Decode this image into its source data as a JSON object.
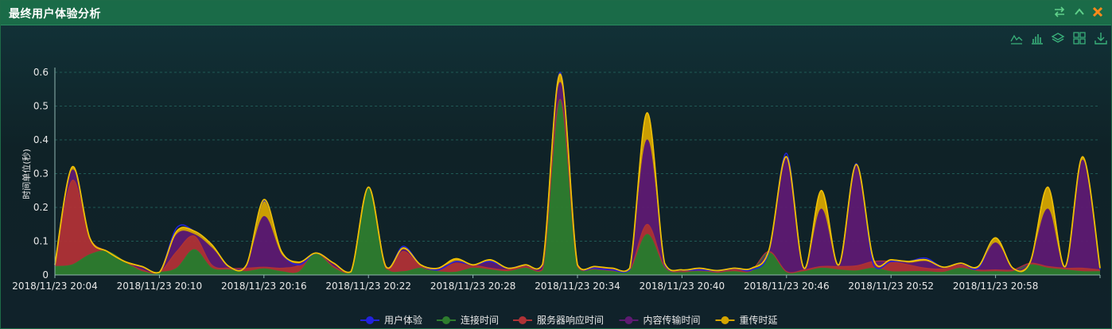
{
  "panel": {
    "title": "最终用户体验分析"
  },
  "window_controls": [
    "swap-icon",
    "chevron-up-icon",
    "close-icon"
  ],
  "toolbox": [
    "line-chart-icon",
    "bar-chart-icon",
    "stack-icon",
    "tiled-icon",
    "download-icon"
  ],
  "colors": {
    "user_experience": "#2222dd",
    "connect_time": "#2e7d2e",
    "server_response": "#b03236",
    "content_transfer": "#5e1a72",
    "retrans_delay": "#d6a500",
    "axis": "#8fb5b0",
    "grid": "#1f5a55"
  },
  "chart_data": {
    "type": "area",
    "title": "",
    "xlabel": "",
    "ylabel": "时间单位(秒)",
    "ylim": [
      0,
      0.6
    ],
    "yticks": [
      0,
      0.1,
      0.2,
      0.3,
      0.4,
      0.5,
      0.6
    ],
    "x_start": "2018/11/23 20:04",
    "xtick_labels": [
      "2018/11/23 20:04",
      "2018/11/23 20:10",
      "2018/11/23 20:16",
      "2018/11/23 20:22",
      "2018/11/23 20:28",
      "2018/11/23 20:34",
      "2018/11/23 20:40",
      "2018/11/23 20:46",
      "2018/11/23 20:52",
      "2018/11/23 20:58"
    ],
    "legend": [
      "用户体验",
      "连接时间",
      "服务器响应时间",
      "内容传输时间",
      "重传时延"
    ],
    "legend_position": "bottom",
    "grid": true,
    "series": [
      {
        "name": "连接时间",
        "key": "connect_time",
        "stack": true,
        "values": [
          0.025,
          0.03,
          0.06,
          0.07,
          0.04,
          0.01,
          0.008,
          0.02,
          0.075,
          0.02,
          0.015,
          0.01,
          0.018,
          0.01,
          0.008,
          0.065,
          0.02,
          0.01,
          0.26,
          0.02,
          0.01,
          0.02,
          0.01,
          0.008,
          0.02,
          0.015,
          0.01,
          0.02,
          0.012,
          0.52,
          0.02,
          0.015,
          0.01,
          0.01,
          0.12,
          0.02,
          0.01,
          0.01,
          0.008,
          0.01,
          0.01,
          0.065,
          0.01,
          0.01,
          0.02,
          0.015,
          0.012,
          0.02,
          0.01,
          0.01,
          0.01,
          0.008,
          0.02,
          0.01,
          0.01,
          0.01,
          0.03,
          0.02,
          0.015,
          0.01,
          0.01
        ]
      },
      {
        "name": "服务器响应时间",
        "key": "server_response",
        "stack": true,
        "values": [
          0.005,
          0.25,
          0.05,
          0.0,
          0.0,
          0.005,
          0.0,
          0.05,
          0.04,
          0.01,
          0.005,
          0.01,
          0.005,
          0.01,
          0.02,
          0.0,
          0.005,
          0.0,
          0.0,
          0.0,
          0.06,
          0.005,
          0.005,
          0.03,
          0.01,
          0.005,
          0.005,
          0.005,
          0.005,
          0.0,
          0.005,
          0.005,
          0.005,
          0.005,
          0.03,
          0.005,
          0.0,
          0.005,
          0.0,
          0.005,
          0.005,
          0.005,
          0.0,
          0.005,
          0.005,
          0.01,
          0.015,
          0.02,
          0.03,
          0.02,
          0.01,
          0.01,
          0.01,
          0.005,
          0.005,
          0.005,
          0.005,
          0.005,
          0.005,
          0.01,
          0.005
        ]
      },
      {
        "name": "内容传输时间",
        "key": "content_transfer",
        "stack": true,
        "values": [
          0.0,
          0.03,
          0.0,
          0.0,
          0.0,
          0.01,
          0.0,
          0.05,
          0.005,
          0.05,
          0.005,
          0.01,
          0.15,
          0.04,
          0.005,
          0.0,
          0.01,
          0.0,
          0.0,
          0.005,
          0.005,
          0.005,
          0.005,
          0.0,
          0.0,
          0.02,
          0.005,
          0.005,
          0.01,
          0.05,
          0.005,
          0.005,
          0.005,
          0.005,
          0.25,
          0.01,
          0.005,
          0.005,
          0.005,
          0.005,
          0.005,
          0.005,
          0.34,
          0.005,
          0.17,
          0.005,
          0.3,
          0.005,
          0.005,
          0.005,
          0.02,
          0.005,
          0.005,
          0.005,
          0.08,
          0.005,
          0.005,
          0.17,
          0.005,
          0.32,
          0.005
        ]
      },
      {
        "name": "重传时延",
        "key": "retrans_delay",
        "stack": true,
        "values": [
          0.0,
          0.01,
          0.0,
          0.0,
          0.0,
          0.0,
          0.0,
          0.01,
          0.01,
          0.01,
          0.0,
          0.0,
          0.05,
          0.01,
          0.005,
          0.0,
          0.0,
          0.0,
          0.0,
          0.0,
          0.005,
          0.0,
          0.0,
          0.01,
          0.0,
          0.005,
          0.0,
          0.0,
          0.005,
          0.025,
          0.0,
          0.0,
          0.0,
          0.0,
          0.08,
          0.0,
          0.0,
          0.0,
          0.0,
          0.0,
          0.0,
          0.0,
          0.0,
          0.0,
          0.055,
          0.0,
          0.0,
          0.0,
          0.0,
          0.005,
          0.005,
          0.0,
          0.0,
          0.005,
          0.015,
          0.0,
          0.0,
          0.065,
          0.0,
          0.01,
          0.0
        ]
      },
      {
        "name": "用户体验",
        "key": "user_experience",
        "stack": false,
        "values": [
          0.03,
          0.32,
          0.11,
          0.07,
          0.04,
          0.025,
          0.008,
          0.14,
          0.13,
          0.09,
          0.025,
          0.03,
          0.22,
          0.07,
          0.03,
          0.065,
          0.035,
          0.01,
          0.26,
          0.025,
          0.085,
          0.03,
          0.015,
          0.04,
          0.03,
          0.04,
          0.02,
          0.03,
          0.03,
          0.6,
          0.03,
          0.02,
          0.015,
          0.015,
          0.48,
          0.03,
          0.015,
          0.015,
          0.013,
          0.02,
          0.015,
          0.07,
          0.36,
          0.02,
          0.25,
          0.03,
          0.33,
          0.03,
          0.04,
          0.04,
          0.05,
          0.023,
          0.035,
          0.02,
          0.11,
          0.02,
          0.04,
          0.26,
          0.025,
          0.35,
          0.015
        ]
      }
    ]
  }
}
